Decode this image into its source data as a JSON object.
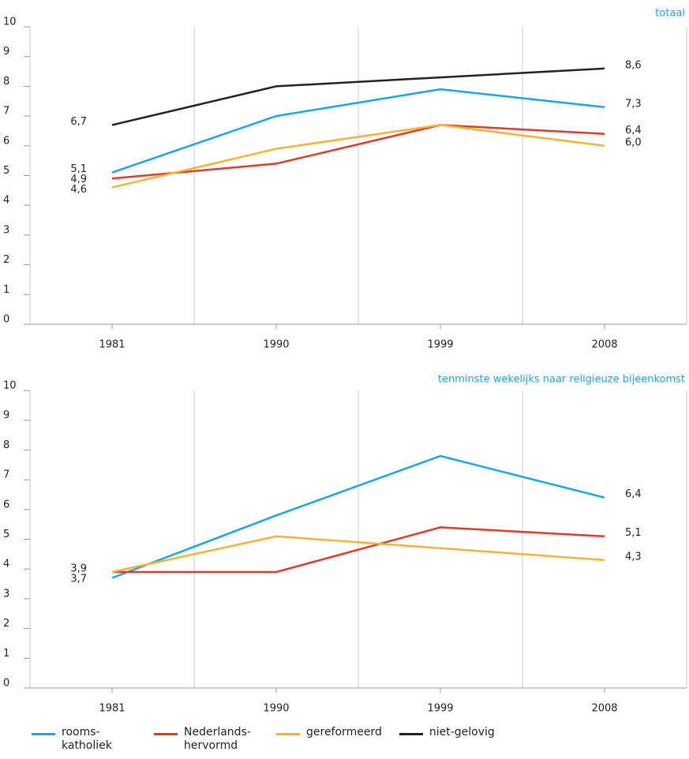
{
  "chart_data": [
    {
      "type": "line",
      "title": "totaal",
      "categories": [
        "1981",
        "1990",
        "1999",
        "2008"
      ],
      "ylim": [
        0,
        10
      ],
      "yticks": [
        0,
        1,
        2,
        3,
        4,
        5,
        6,
        7,
        8,
        9,
        10
      ],
      "series": [
        {
          "name": "rooms-katholiek",
          "color": "#1aa7de",
          "values": [
            5.1,
            7.0,
            7.9,
            7.3
          ],
          "value_labels": [
            "5,1",
            null,
            null,
            "7,3"
          ]
        },
        {
          "name": "Nederlands-hervormd",
          "color": "#e03a2a",
          "values": [
            4.9,
            5.4,
            6.7,
            6.4
          ],
          "value_labels": [
            "4,9",
            null,
            null,
            "6,4"
          ]
        },
        {
          "name": "gereformeerd",
          "color": "#f5b335",
          "values": [
            4.6,
            5.9,
            6.7,
            6.0
          ],
          "value_labels": [
            "4,6",
            null,
            null,
            "6,0"
          ]
        },
        {
          "name": "niet-gelovig",
          "color": "#222222",
          "values": [
            6.7,
            8.0,
            8.3,
            8.6
          ],
          "value_labels": [
            "6,7",
            null,
            null,
            "8,6"
          ]
        }
      ]
    },
    {
      "type": "line",
      "title": "tenminste wekelijks naar religieuze bijeenkomst",
      "categories": [
        "1981",
        "1990",
        "1999",
        "2008"
      ],
      "ylim": [
        0,
        10
      ],
      "yticks": [
        0,
        1,
        2,
        3,
        4,
        5,
        6,
        7,
        8,
        9,
        10
      ],
      "series": [
        {
          "color": "#1aa7de",
          "values": [
            3.7,
            5.8,
            7.8,
            6.4
          ],
          "value_labels": [
            "3,7",
            null,
            null,
            "6,4"
          ]
        },
        {
          "color": "#e03a2a",
          "values": [
            3.9,
            3.9,
            5.4,
            5.1
          ],
          "value_labels": [
            "3,9",
            null,
            null,
            "5,1"
          ]
        },
        {
          "color": "#f5b335",
          "values": [
            3.9,
            5.1,
            4.7,
            4.3
          ],
          "value_labels": [
            null,
            null,
            null,
            "4,3"
          ]
        }
      ]
    }
  ]
}
